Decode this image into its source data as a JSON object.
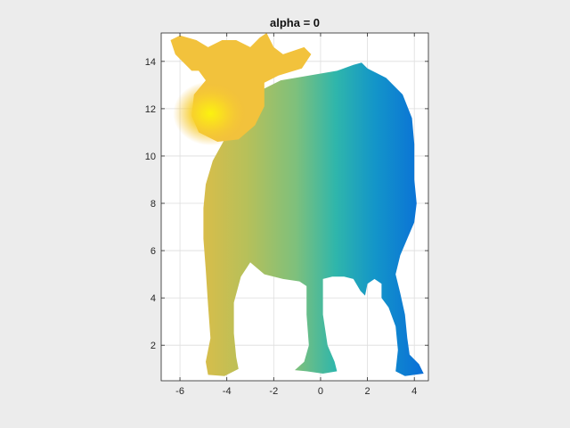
{
  "chart_data": {
    "type": "surface",
    "title": "alpha = 0",
    "xlabel": "",
    "ylabel": "",
    "xlim": [
      -6.8,
      4.6
    ],
    "ylim": [
      0.5,
      15.2
    ],
    "x_ticks": [
      -6,
      -4,
      -2,
      0,
      2,
      4
    ],
    "y_ticks": [
      2,
      4,
      6,
      8,
      10,
      12,
      14
    ],
    "x_tick_labels": [
      "-6",
      "-4",
      "-2",
      "0",
      "2",
      "4"
    ],
    "y_tick_labels": [
      "2",
      "4",
      "6",
      "8",
      "10",
      "12",
      "14"
    ],
    "grid": true,
    "colormap": "parula",
    "colormap_stops": [
      "#352a87",
      "#0363e1",
      "#1485d4",
      "#06a7c6",
      "#38b99e",
      "#92bf73",
      "#d9ba56",
      "#fcce2e",
      "#f9fb0e"
    ],
    "colors": {
      "background": "#ececec",
      "axes": "#ffffff",
      "grid": "#dcdcdc",
      "axis_line": "#262626",
      "hot": "#fbf20f",
      "warm": "#f6bd32",
      "mid": "#80c07a",
      "cool": "#22b3b0",
      "cold": "#0a6fd6"
    },
    "shape": "cow-silhouette"
  }
}
